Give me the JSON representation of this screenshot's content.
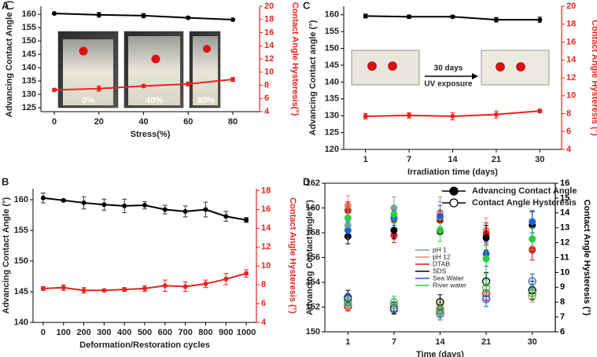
{
  "chart_data": [
    {
      "type": "line",
      "label": "A",
      "xlabel": "Stress(%)",
      "ylabel": "Advancing Contact Angle (°)",
      "y2label": "Contact Angle Hysteresis(°)",
      "x": [
        0,
        20,
        40,
        60,
        80
      ],
      "xlim": [
        -6,
        92
      ],
      "xticks": [
        0,
        20,
        40,
        60,
        80
      ],
      "ylim": [
        123.5,
        163
      ],
      "yticks": [
        125,
        130,
        135,
        140,
        145,
        150,
        155,
        160
      ],
      "y2lim": [
        4,
        20
      ],
      "y2ticks": [
        4,
        6,
        8,
        10,
        12,
        14,
        16,
        18,
        20
      ],
      "y2color": "#e8231f",
      "annotations": [
        "0%",
        "40%",
        "80%"
      ],
      "series": [
        {
          "color": "#000000",
          "axis": "y",
          "values": [
            160.3,
            159.8,
            159.5,
            158.7,
            158.0
          ],
          "errors": [
            0.3,
            0.9,
            0.8,
            0.4,
            0.3
          ]
        },
        {
          "color": "#e8231f",
          "axis": "y2",
          "values": [
            7.3,
            7.5,
            7.9,
            8.2,
            8.9
          ],
          "errors": [
            0.2,
            0.4,
            0.2,
            0.3,
            0.3
          ]
        }
      ]
    },
    {
      "type": "line",
      "label": "B",
      "xlabel": "Deformation/Restoration cycles",
      "ylabel": "Advancing Contact Angle (°)",
      "y2label": "Contact Angle Hysteresis (°)",
      "x": [
        0,
        100,
        200,
        300,
        400,
        500,
        600,
        700,
        800,
        900,
        1000
      ],
      "xlim": [
        -50,
        1050
      ],
      "xticks": [
        0,
        100,
        200,
        300,
        400,
        500,
        600,
        700,
        800,
        900,
        1000
      ],
      "ylim": [
        140,
        161.8
      ],
      "yticks": [
        140,
        145,
        150,
        155,
        160
      ],
      "y2lim": [
        4,
        18.2
      ],
      "y2ticks": [
        4,
        6,
        8,
        10,
        12,
        14,
        16,
        18
      ],
      "y2color": "#e8231f",
      "series": [
        {
          "color": "#000000",
          "axis": "y",
          "values": [
            160.3,
            159.9,
            159.5,
            159.2,
            159.0,
            159.1,
            158.4,
            158.1,
            158.4,
            157.3,
            156.7
          ],
          "errors": [
            0.8,
            0.2,
            1.0,
            0.9,
            1.1,
            0.6,
            0.7,
            0.9,
            1.2,
            0.8,
            0.4
          ]
        },
        {
          "color": "#e8231f",
          "axis": "y2",
          "values": [
            7.6,
            7.7,
            7.4,
            7.4,
            7.5,
            7.6,
            7.9,
            7.8,
            8.1,
            8.6,
            9.2
          ],
          "errors": [
            0.2,
            0.3,
            0.3,
            0.1,
            0.2,
            0.3,
            0.6,
            0.5,
            0.4,
            0.6,
            0.4
          ]
        }
      ]
    },
    {
      "type": "line",
      "label": "C",
      "xlabel": "Irradiation time (days)",
      "ylabel": "Advancing Contact angle (°)",
      "y2label": "Contact Angle Hysteresis (°)",
      "categories": [
        "1",
        "7",
        "14",
        "21",
        "30"
      ],
      "ylim": [
        120,
        162.5
      ],
      "yticks": [
        120,
        125,
        130,
        135,
        140,
        145,
        150,
        155,
        160
      ],
      "y2lim": [
        4,
        20
      ],
      "y2ticks": [
        4,
        6,
        8,
        10,
        12,
        14,
        16,
        18,
        20
      ],
      "y2color": "#e8231f",
      "annotations": [
        "30 days",
        "UV exposure"
      ],
      "series": [
        {
          "color": "#000000",
          "axis": "y",
          "values": [
            159.6,
            159.4,
            159.4,
            158.5,
            158.5
          ],
          "errors": [
            0.6,
            0.5,
            0.4,
            0.7,
            0.8
          ]
        },
        {
          "color": "#e8231f",
          "axis": "y2",
          "values": [
            7.7,
            7.8,
            7.7,
            7.9,
            8.3
          ],
          "errors": [
            0.3,
            0.3,
            0.4,
            0.4,
            0.2
          ]
        }
      ]
    },
    {
      "type": "scatter",
      "label": "D",
      "xlabel": "Time (days)",
      "ylabel": "Advancing Contact angle (°)",
      "y2label": "Contact Angle Hysteresis (°)",
      "categories": [
        "1",
        "7",
        "14",
        "21",
        "30"
      ],
      "ylim": [
        150,
        162
      ],
      "yticks": [
        150,
        152,
        154,
        156,
        158,
        160,
        162
      ],
      "y2lim": [
        6,
        16
      ],
      "y2ticks": [
        6,
        7,
        8,
        9,
        10,
        11,
        12,
        13,
        14,
        15,
        16
      ],
      "y2color": "#000000",
      "marker_legend": [
        "Advancing Contact Angle",
        "Contact Angle Hysteresis"
      ],
      "series": [
        {
          "name": "pH 1",
          "color": "#8a9bb0",
          "values": [
            158.6,
            160.0,
            159.6,
            157.6,
            157.5
          ],
          "errors": [
            1.0,
            0.9,
            1.3,
            1.2,
            1.0
          ],
          "y2values": [
            8.0,
            7.8,
            7.5,
            8.6,
            8.8
          ],
          "y2errors": [
            0.5,
            0.4,
            0.5,
            0.5,
            0.4
          ]
        },
        {
          "name": "pH 12",
          "color": "#f0836f",
          "values": [
            160.2,
            159.0,
            159.5,
            158.2,
            156.7
          ],
          "errors": [
            0.8,
            0.8,
            1.0,
            1.0,
            0.9
          ],
          "y2values": [
            7.8,
            7.6,
            7.6,
            8.4,
            8.4
          ],
          "y2errors": [
            0.4,
            0.3,
            0.4,
            0.4,
            0.4
          ]
        },
        {
          "name": "DTAB",
          "color": "#e41a1c",
          "values": [
            159.8,
            157.8,
            159.0,
            157.9,
            156.6
          ],
          "errors": [
            0.7,
            0.6,
            0.8,
            0.9,
            0.8
          ],
          "y2values": [
            7.7,
            7.5,
            7.4,
            8.6,
            8.6
          ],
          "y2errors": [
            0.3,
            0.3,
            0.4,
            0.5,
            0.4
          ]
        },
        {
          "name": "SDS",
          "color": "#000000",
          "values": [
            157.7,
            158.2,
            158.1,
            157.6,
            158.6
          ],
          "errors": [
            0.6,
            0.7,
            0.8,
            1.0,
            1.1
          ],
          "y2values": [
            8.3,
            7.6,
            8.0,
            9.4,
            8.8
          ],
          "y2errors": [
            0.5,
            0.4,
            0.5,
            0.6,
            0.6
          ]
        },
        {
          "name": "Sea Water",
          "color": "#1f5fd6",
          "values": [
            158.2,
            159.2,
            159.3,
            156.3,
            158.9
          ],
          "errors": [
            0.7,
            0.6,
            0.9,
            1.0,
            0.9
          ],
          "y2values": [
            8.2,
            7.6,
            7.2,
            8.2,
            9.4
          ],
          "y2errors": [
            0.4,
            0.3,
            0.4,
            0.5,
            0.5
          ]
        },
        {
          "name": "River water",
          "color": "#2ecc40",
          "values": [
            159.2,
            159.5,
            158.2,
            155.9,
            157.5
          ],
          "errors": [
            0.8,
            0.7,
            0.9,
            1.2,
            0.9
          ],
          "y2values": [
            7.9,
            8.0,
            7.5,
            9.0,
            8.6
          ],
          "y2errors": [
            0.4,
            0.4,
            0.4,
            0.5,
            0.5
          ]
        }
      ]
    }
  ]
}
